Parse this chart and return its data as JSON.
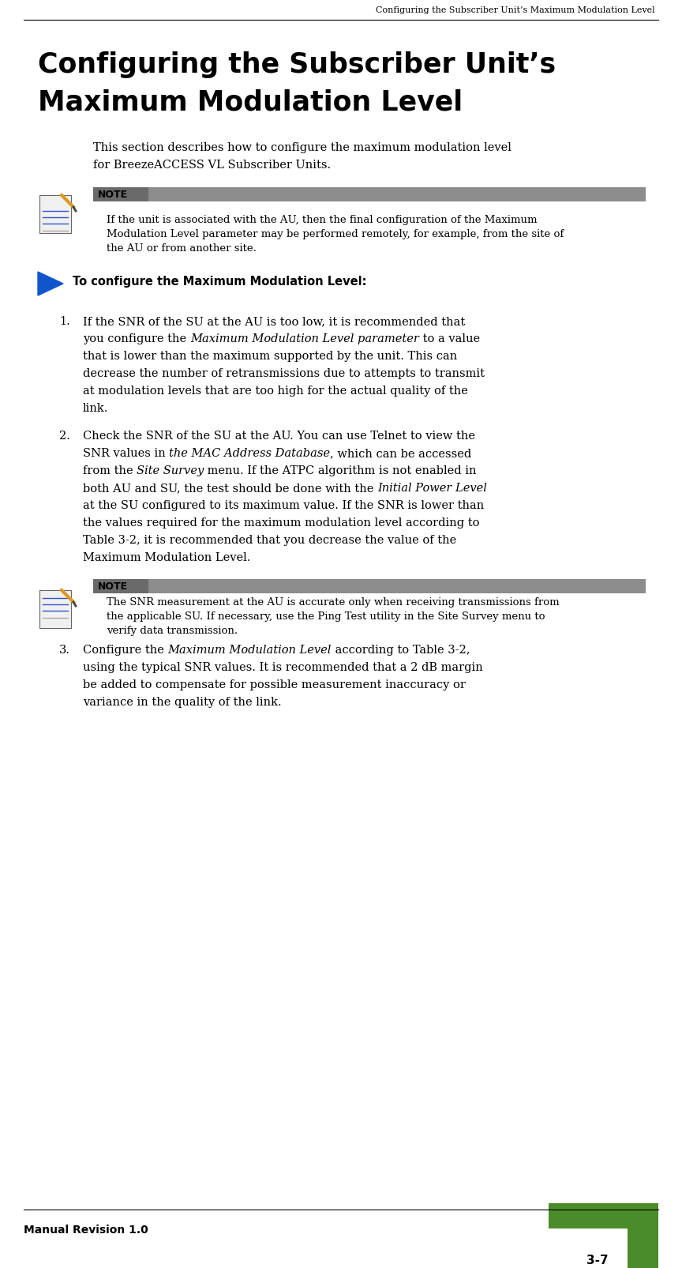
{
  "header_text": "Configuring the Subscriber Unit’s Maximum Modulation Level",
  "title_line1": "Configuring the Subscriber Unit’s",
  "title_line2": "Maximum Modulation Level",
  "intro_line1": "This section describes how to configure the maximum modulation level",
  "intro_line2": "for BreezeACCESS VL Subscriber Units.",
  "note1_label": "NOTE",
  "note1_line1": "If the unit is associated with the AU, then the final configuration of the Maximum",
  "note1_line2": "Modulation Level parameter may be performed remotely, for example, from the site of",
  "note1_line3": "the AU or from another site.",
  "procedure_label": "To configure the Maximum Modulation Level:",
  "item1_l1": "If the SNR of the SU at the AU is too low, it is recommended that",
  "item1_l2_a": "you configure the ",
  "item1_l2_b": "Maximum Modulation Level parameter",
  "item1_l2_c": " to a value",
  "item1_l3": "that is lower than the maximum supported by the unit. This can",
  "item1_l4": "decrease the number of retransmissions due to attempts to transmit",
  "item1_l5": "at modulation levels that are too high for the actual quality of the",
  "item1_l6": "link.",
  "item2_l1": "Check the SNR of the SU at the AU. You can use Telnet to view the",
  "item2_l2_a": "SNR values in ",
  "item2_l2_b": "the MAC Address Database",
  "item2_l2_c": ", which can be accessed",
  "item2_l3_a": "from the ",
  "item2_l3_b": "Site Survey",
  "item2_l3_c": " menu. If the ATPC algorithm is not enabled in",
  "item2_l4_a": "both AU and SU, the test should be done with the ",
  "item2_l4_b": "Initial Power Level",
  "item2_l5": "at the SU configured to its maximum value. If the SNR is lower than",
  "item2_l6": "the values required for the maximum modulation level according to",
  "item2_l7": "Table 3-2, it is recommended that you decrease the value of the",
  "item2_l8": "Maximum Modulation Level.",
  "note2_label": "NOTE",
  "note2_line1": "The SNR measurement at the AU is accurate only when receiving transmissions from",
  "note2_line2": "the applicable SU. If necessary, use the Ping Test utility in the Site Survey menu to",
  "note2_line3": "verify data transmission.",
  "item3_l1_a": "Configure the ",
  "item3_l1_b": "Maximum Modulation Level",
  "item3_l1_c": " according to Table 3-2,",
  "item3_l2": "using the typical SNR values. It is recommended that a 2 dB margin",
  "item3_l3": "be added to compensate for possible measurement inaccuracy or",
  "item3_l4": "variance in the quality of the link.",
  "footer_text": "Manual Revision 1.0",
  "page_number": "3-7",
  "bg_color": "#ffffff",
  "note_bg_color": "#8c8c8c",
  "green_color": "#4a8c2a",
  "blue_arrow_color": "#1155cc"
}
